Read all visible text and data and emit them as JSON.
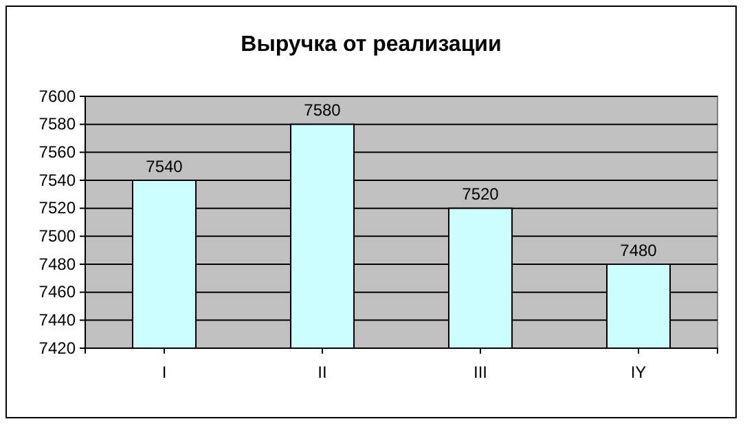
{
  "chart_data": {
    "type": "bar",
    "title": "Выручка от реализации",
    "categories": [
      "I",
      "II",
      "III",
      "IY"
    ],
    "values": [
      7540,
      7580,
      7520,
      7480
    ],
    "color": "#ccffff",
    "ylim": [
      7420,
      7600
    ],
    "yticks": [
      7420,
      7440,
      7460,
      7480,
      7500,
      7520,
      7540,
      7560,
      7580,
      7600
    ],
    "grid": "y",
    "data_labels": true
  }
}
